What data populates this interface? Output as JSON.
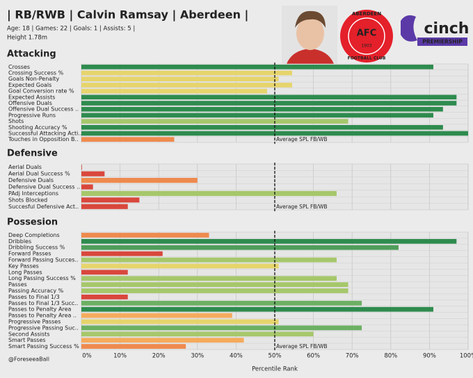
{
  "header": {
    "title": "| RB/RWB | Calvin Ramsay | Aberdeen |",
    "subtitle": "Age: 18 | Games: 22 | Goals: 1 | Assists: 5 |",
    "detail": "Height 1.78m",
    "club_logo": {
      "name": "ABERDEEN",
      "sub": "FOOTBALL CLUB",
      "initials": "AFC",
      "year": "1903"
    },
    "league_logo": {
      "name": "cinch",
      "sub": "PREMIERSHIP"
    }
  },
  "axis": {
    "label": "Percentile Rank",
    "xlim": [
      0,
      100
    ],
    "xticks": [
      {
        "value": 0,
        "label": "0%"
      },
      {
        "value": 10,
        "label": "10%"
      },
      {
        "value": 20,
        "label": "20%"
      },
      {
        "value": 30,
        "label": "30%"
      },
      {
        "value": 40,
        "label": "40%"
      },
      {
        "value": 50,
        "label": "50%"
      },
      {
        "value": 60,
        "label": "60%"
      },
      {
        "value": 70,
        "label": "70%"
      },
      {
        "value": 80,
        "label": "80%"
      },
      {
        "value": 90,
        "label": "90%"
      },
      {
        "value": 100,
        "label": "100%"
      }
    ],
    "grid": true,
    "reference": {
      "value": 50,
      "label": "Average SPL FB/WB"
    }
  },
  "chart_data": [
    {
      "type": "barh",
      "title": "Attacking",
      "categories": [
        "Crosses",
        "Crossing Success %",
        "Goals Non-Penalty",
        "Expected Goals",
        "Goal Conversion rate %",
        "Expected Assists",
        "Offensive Duals",
        "Offensive Dual Success ..",
        "Progressive Runs",
        "Shots",
        "Shooting Accuracy %",
        "Successful Attacking Acti..",
        "Touches in Opposition B.."
      ],
      "values": [
        91,
        54.5,
        51,
        54.5,
        48,
        97,
        97,
        93.5,
        91,
        69,
        93.5,
        100,
        24
      ],
      "colors": [
        "#2e8b4e",
        "#e6d46c",
        "#e6d46c",
        "#e6d46c",
        "#e6d46c",
        "#2e8b4e",
        "#2e8b4e",
        "#2e8b4e",
        "#2e8b4e",
        "#a6c76b",
        "#2e8b4e",
        "#2e8b4e",
        "#ee8a4e"
      ]
    },
    {
      "type": "barh",
      "title": "Defensive",
      "categories": [
        "Aerial Duals",
        "Aerial Dual Success %",
        "Defensive Duals",
        "Defensive Dual Success ..",
        "PAdj Interceptions",
        "Shots Blocked",
        "Succesful Defensive Act.."
      ],
      "values": [
        0,
        6,
        30,
        3,
        66,
        15,
        12
      ],
      "colors": [
        "#d9473c",
        "#d9473c",
        "#ee8a4e",
        "#d9473c",
        "#a6c76b",
        "#d9473c",
        "#d9473c"
      ]
    },
    {
      "type": "barh",
      "title": "Possesion",
      "categories": [
        "Deep Completions",
        "Dribbles",
        "Dribbling Success %",
        "Forward Passes",
        "Forward Passing Succes..",
        "Key Passes",
        "Long Passes",
        "Long Passing Success %",
        "Passes",
        "Passing Accuracy %",
        "Passes to Final 1/3",
        "Passes to Final 1/3 Succ..",
        "Passes to Penalty Area",
        "Passes to Penalty Area ..",
        "Progressive Passes",
        "Progressive Passing Suc..",
        "Second Assists",
        "Smart Passes",
        "Smart Passing Success %"
      ],
      "values": [
        33,
        97,
        82,
        21,
        66,
        51,
        12,
        66,
        69,
        69,
        12,
        72.5,
        91,
        39,
        51,
        72.5,
        60,
        42,
        27
      ],
      "colors": [
        "#ee8a4e",
        "#2e8b4e",
        "#4e9e5a",
        "#d9473c",
        "#a6c76b",
        "#e6d46c",
        "#d9473c",
        "#a6c76b",
        "#a6c76b",
        "#a6c76b",
        "#d9473c",
        "#6cb063",
        "#2e8b4e",
        "#f5ab5c",
        "#e6d46c",
        "#6cb063",
        "#a6c76b",
        "#f5ab5c",
        "#ee8a4e"
      ]
    }
  ],
  "footer": {
    "credit": "@ForeseeaBall"
  }
}
